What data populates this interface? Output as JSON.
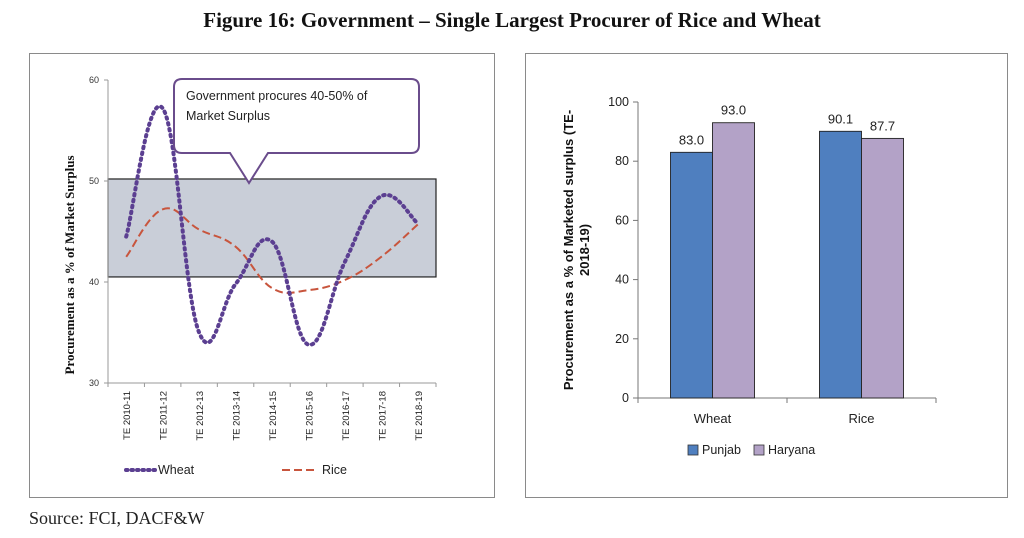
{
  "figure_title": "Figure 16:  Government – Single Largest Procurer of Rice and Wheat",
  "source": "Source: FCI, DACF&W",
  "chart_data": [
    {
      "type": "line",
      "categories": [
        "TE 2010-11",
        "TE 2011-12",
        "TE 2012-13",
        "TE 2013-14",
        "TE 2014-15",
        "TE 2015-16",
        "TE 2016-17",
        "TE 2017-18",
        "TE 2018-19"
      ],
      "series": [
        {
          "name": "Wheat",
          "values": [
            44.5,
            57.2,
            35.0,
            39.8,
            44.0,
            33.8,
            42.0,
            48.5,
            45.8
          ],
          "color": "#5b3f91",
          "style": "dotted"
        },
        {
          "name": "Rice",
          "values": [
            42.5,
            47.2,
            45.2,
            43.5,
            39.4,
            39.2,
            40.2,
            42.5,
            45.7
          ],
          "color": "#c8553d",
          "style": "dashed"
        }
      ],
      "yticks": [
        "30",
        "40",
        "50",
        "60"
      ],
      "ylim": [
        30,
        60
      ],
      "ylabel": "Procurement as a % of Market Surplus",
      "band": {
        "from": 40.5,
        "to": 50.2,
        "color": "#c9ced8"
      },
      "callout": "Government procures 40-50% of Market Surplus",
      "callout_line1": "Government procures 40-50% of",
      "callout_line2": "Market Surplus",
      "legend": [
        "Wheat",
        "Rice"
      ]
    },
    {
      "type": "bar",
      "categories": [
        "Wheat",
        "Rice"
      ],
      "series": [
        {
          "name": "Punjab",
          "values": [
            83.0,
            90.1
          ],
          "color": "#4f7fbf"
        },
        {
          "name": "Haryana",
          "values": [
            93.0,
            87.7
          ],
          "color": "#b3a2c7"
        }
      ],
      "data_labels": [
        [
          "83.0",
          "90.1"
        ],
        [
          "93.0",
          "87.7"
        ]
      ],
      "yticks": [
        "0",
        "20",
        "40",
        "60",
        "80",
        "100"
      ],
      "ylim": [
        0,
        100
      ],
      "ylabel": "Procurement as a % of Marketed surplus (TE-2018-19)",
      "ylabel_line1": "Procurement as a % of Marketed surplus (TE-",
      "ylabel_line2": "2018-19)",
      "legend": [
        "Punjab",
        "Haryana"
      ]
    }
  ]
}
